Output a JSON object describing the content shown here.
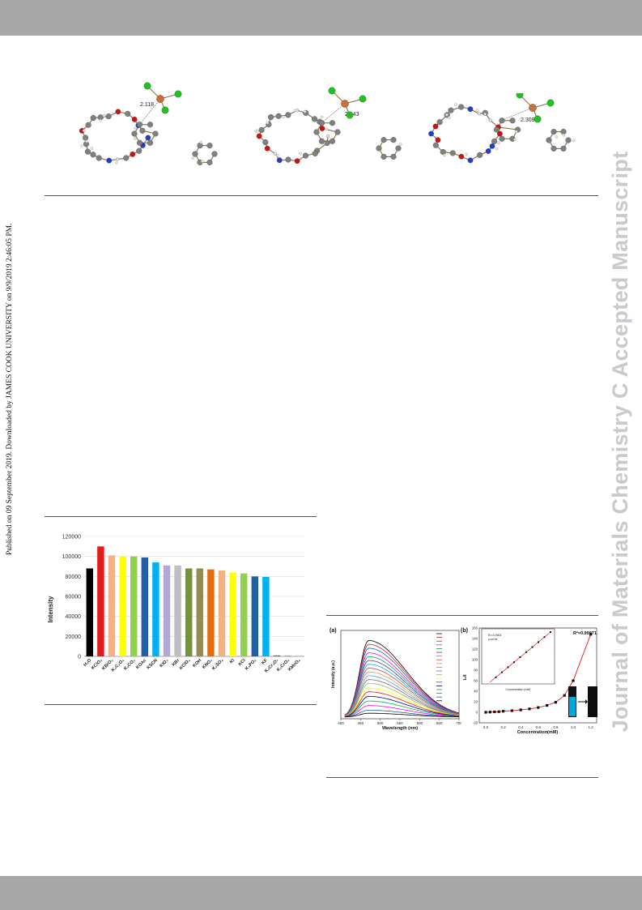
{
  "page": {
    "sidebar_text": "Published on 09 September 2019. Downloaded by JAMES COOK UNIVERSITY on 9/9/2019 2:46:05 PM.",
    "watermark_text": "Journal of Materials Chemistry C Accepted Manuscript"
  },
  "molecules": {
    "bond_labels": [
      "2.118",
      "2.143",
      "2.309"
    ]
  },
  "bar_chart_colors": [
    "#000000",
    "#e41a1c",
    "#f4b183",
    "#ffff00",
    "#92d050",
    "#1f5fa6",
    "#00b0f0",
    "#b4a7d6",
    "#bfbfbf",
    "#76923c",
    "#948a54",
    "#e46c0a",
    "#f4b183",
    "#ffff00",
    "#92d050",
    "#1f5fa6",
    "#00b0f0",
    "#31859c",
    "#8db3e2",
    "#c3d69b"
  ],
  "spectra_colors": [
    "#000000",
    "#e41a1c",
    "#1f5fa6",
    "#ff00ff",
    "#00b050",
    "#7030a0",
    "#00b0f0",
    "#c0504d",
    "#f79646",
    "#4bacc6",
    "#8064a2",
    "#9bbb59",
    "#ffff00",
    "#e41a1c",
    "#000080",
    "#00b050",
    "#ff00ff",
    "#1f5fa6",
    "#000000"
  ],
  "chart_data": [
    {
      "type": "bar",
      "ylabel": "Intensity",
      "ylim": [
        0,
        120000
      ],
      "yticks": [
        "0",
        "20000",
        "40000",
        "60000",
        "80000",
        "100000",
        "120000"
      ],
      "categories": [
        "H₂O",
        "KClO₃",
        "KBrO₃",
        "K₂C₂O₄",
        "K₂CO₃",
        "KOAc",
        "KSCN",
        "KIO₃",
        "KBr",
        "KClO₄",
        "KOH",
        "KNO₃",
        "K₂SO₄",
        "KI",
        "KCl",
        "K₃PO₄",
        "KF",
        "K₂Cr₂O₇",
        "K₂CrO₄",
        "KMnO₄"
      ],
      "values": [
        88000,
        110000,
        101000,
        100000,
        100000,
        99000,
        94000,
        91000,
        91000,
        88000,
        88000,
        87000,
        86000,
        84000,
        83000,
        80000,
        79500,
        0,
        0,
        0
      ]
    },
    {
      "type": "line",
      "panel_label": "(a)",
      "xlabel": "Wavelength (nm)",
      "ylabel": "Intensity (a.u.)",
      "xlim": [
        400,
        700
      ],
      "xticks": [
        "400",
        "450",
        "500",
        "550",
        "600",
        "650",
        "700"
      ],
      "peak_x": 470,
      "peak_heights": [
        1.0,
        0.95,
        0.9,
        0.84,
        0.79,
        0.74,
        0.69,
        0.64,
        0.59,
        0.54,
        0.49,
        0.44,
        0.38,
        0.33,
        0.27,
        0.21,
        0.15,
        0.09,
        0.05
      ]
    },
    {
      "type": "scatter",
      "panel_label": "(b)",
      "xlabel": "Concentration(mM)",
      "ylabel": "I₀/I",
      "annotation": "R²=0.99971",
      "xlim": [
        0,
        1.25
      ],
      "xticks": [
        "0.0",
        "0.2",
        "0.4",
        "0.6",
        "0.8",
        "1.0",
        "1.2"
      ],
      "ylim": [
        -20,
        160
      ],
      "yticks": [
        "-20",
        "0",
        "20",
        "40",
        "60",
        "80",
        "100",
        "120",
        "140",
        "160"
      ],
      "x": [
        0.0,
        0.05,
        0.1,
        0.15,
        0.2,
        0.3,
        0.4,
        0.5,
        0.6,
        0.7,
        0.8,
        0.9,
        1.0,
        1.2
      ],
      "y": [
        0,
        0.4,
        0.8,
        1.2,
        2,
        3,
        4.5,
        6.5,
        9,
        13,
        19,
        32,
        60,
        148
      ],
      "inset": {
        "xlabel": "Concentration (mM)",
        "annotation_1": "R²=0.9904",
        "annotation_2": "y=a+bx",
        "x": [
          0.1,
          0.2,
          0.3,
          0.4,
          0.5,
          0.6,
          0.7,
          0.8,
          0.9,
          1.0
        ],
        "y": [
          0.1,
          0.2,
          0.3,
          0.4,
          0.5,
          0.6,
          0.7,
          0.8,
          0.9,
          1.0
        ]
      }
    }
  ]
}
